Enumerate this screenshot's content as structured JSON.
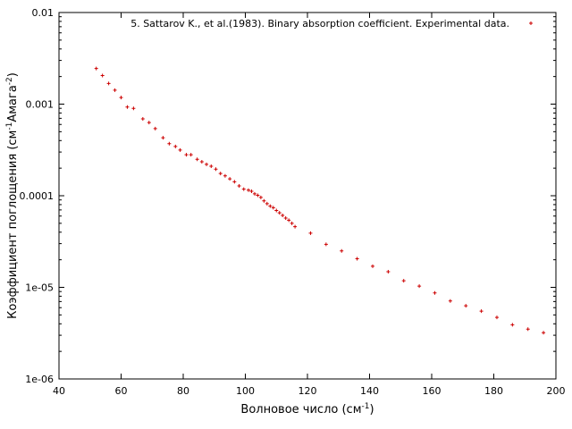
{
  "chart_data": {
    "type": "scatter",
    "title": "",
    "xlabel": {
      "text": "Волновое число (см",
      "sup": "-1",
      "suffix": ")"
    },
    "ylabel": {
      "pre": "Коэффициент поглощения (см",
      "sup1": "-1",
      "mid": "Амага",
      "sup2": "-2",
      "post": ")"
    },
    "xlim": [
      40,
      200
    ],
    "ylim": [
      1e-06,
      0.01
    ],
    "yscale": "log",
    "xticks": [
      40,
      60,
      80,
      100,
      120,
      140,
      160,
      180,
      200
    ],
    "xtick_labels": [
      "40",
      "60",
      "80",
      "100",
      "120",
      "140",
      "160",
      "180",
      "200"
    ],
    "yticks": [
      1e-06,
      1e-05,
      0.0001,
      0.001,
      0.01
    ],
    "ytick_labels": [
      "1e-06",
      "1e-05",
      "0.0001",
      "0.001",
      "0.01"
    ],
    "grid": false,
    "legend_position": "top-right",
    "marker_color": "#cc0000",
    "series": [
      {
        "name": "5. Sattarov K., et al.(1983). Binary absorption coefficient. Experimental data.",
        "points": [
          [
            52.0,
            0.00245
          ],
          [
            54.0,
            0.00205
          ],
          [
            56.0,
            0.00168
          ],
          [
            58.0,
            0.00142
          ],
          [
            60.0,
            0.00118
          ],
          [
            62.0,
            0.00093
          ],
          [
            64.0,
            0.0009
          ],
          [
            67.0,
            0.00069
          ],
          [
            69.0,
            0.00063
          ],
          [
            71.0,
            0.00054
          ],
          [
            73.5,
            0.00043
          ],
          [
            75.5,
            0.00037
          ],
          [
            77.5,
            0.000345
          ],
          [
            79.0,
            0.000315
          ],
          [
            81.0,
            0.00028
          ],
          [
            82.5,
            0.00028
          ],
          [
            84.5,
            0.00025
          ],
          [
            86.0,
            0.000235
          ],
          [
            87.5,
            0.00022
          ],
          [
            89.0,
            0.00021
          ],
          [
            90.5,
            0.000195
          ],
          [
            92.0,
            0.000175
          ],
          [
            93.5,
            0.000165
          ],
          [
            95.0,
            0.000153
          ],
          [
            96.5,
            0.000142
          ],
          [
            98.0,
            0.000128
          ],
          [
            99.5,
            0.000118
          ],
          [
            101.0,
            0.000115
          ],
          [
            102.0,
            0.000112
          ],
          [
            103.0,
            0.000105
          ],
          [
            104.0,
            0.000101
          ],
          [
            105.0,
            9.6e-05
          ],
          [
            106.0,
            8.8e-05
          ],
          [
            107.0,
            8.2e-05
          ],
          [
            108.0,
            7.7e-05
          ],
          [
            109.0,
            7.4e-05
          ],
          [
            110.0,
            6.9e-05
          ],
          [
            111.0,
            6.5e-05
          ],
          [
            112.0,
            6.1e-05
          ],
          [
            113.0,
            5.7e-05
          ],
          [
            114.0,
            5.4e-05
          ],
          [
            115.0,
            5e-05
          ],
          [
            116.0,
            4.6e-05
          ],
          [
            121.0,
            3.9e-05
          ],
          [
            126.0,
            2.95e-05
          ],
          [
            131.0,
            2.5e-05
          ],
          [
            136.0,
            2.05e-05
          ],
          [
            141.0,
            1.7e-05
          ],
          [
            146.0,
            1.48e-05
          ],
          [
            151.0,
            1.18e-05
          ],
          [
            156.0,
            1.03e-05
          ],
          [
            161.0,
            8.7e-06
          ],
          [
            166.0,
            7.1e-06
          ],
          [
            171.0,
            6.3e-06
          ],
          [
            176.0,
            5.5e-06
          ],
          [
            181.0,
            4.7e-06
          ],
          [
            186.0,
            3.9e-06
          ],
          [
            191.0,
            3.5e-06
          ],
          [
            196.0,
            3.2e-06
          ]
        ]
      }
    ]
  }
}
